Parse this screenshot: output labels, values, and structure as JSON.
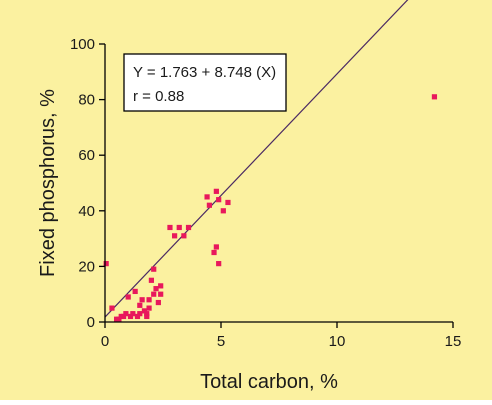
{
  "chart_data": {
    "type": "scatter",
    "xlabel": "Total carbon, %",
    "ylabel": "Fixed phosphorus, %",
    "xlim": [
      0,
      15
    ],
    "ylim": [
      0,
      100
    ],
    "xticks": [
      0,
      5,
      10,
      15
    ],
    "yticks": [
      0,
      20,
      40,
      60,
      80,
      100
    ],
    "xtick_labels": [
      "0",
      "5",
      "10",
      "15"
    ],
    "ytick_labels": [
      "0",
      "20",
      "40",
      "60",
      "80",
      "100"
    ],
    "grid": false,
    "annotation": {
      "line1": "Y = 1.763 + 8.748 (X)",
      "line2": "r = 0.88"
    },
    "regression": {
      "intercept": 1.763,
      "slope": 8.748,
      "x_range": [
        0,
        14.2
      ]
    },
    "series": [
      {
        "points": [
          [
            0.05,
            21
          ],
          [
            0.3,
            5
          ],
          [
            0.5,
            1
          ],
          [
            0.6,
            1
          ],
          [
            0.7,
            2
          ],
          [
            0.8,
            2
          ],
          [
            0.9,
            3
          ],
          [
            1.0,
            9
          ],
          [
            1.1,
            2
          ],
          [
            1.2,
            3
          ],
          [
            1.3,
            11
          ],
          [
            1.4,
            2
          ],
          [
            1.5,
            6
          ],
          [
            1.5,
            3
          ],
          [
            1.6,
            8
          ],
          [
            1.7,
            4
          ],
          [
            1.8,
            3
          ],
          [
            1.8,
            2
          ],
          [
            1.9,
            5
          ],
          [
            1.9,
            8
          ],
          [
            2.0,
            15
          ],
          [
            2.1,
            10
          ],
          [
            2.1,
            19
          ],
          [
            2.2,
            12
          ],
          [
            2.3,
            7
          ],
          [
            2.4,
            10
          ],
          [
            2.4,
            13
          ],
          [
            2.8,
            34
          ],
          [
            3.0,
            31
          ],
          [
            3.2,
            34
          ],
          [
            3.4,
            31
          ],
          [
            3.6,
            34
          ],
          [
            4.4,
            45
          ],
          [
            4.5,
            42
          ],
          [
            4.8,
            47
          ],
          [
            4.9,
            44
          ],
          [
            5.1,
            40
          ],
          [
            5.3,
            43
          ],
          [
            4.7,
            25
          ],
          [
            4.8,
            27
          ],
          [
            4.9,
            21
          ],
          [
            14.2,
            81
          ]
        ]
      }
    ],
    "colors": {
      "background": "#fbf1a0",
      "points": "#e8185c",
      "line": "#4b2a63",
      "axis": "#000000",
      "annotation_box": "#ffffff"
    }
  }
}
